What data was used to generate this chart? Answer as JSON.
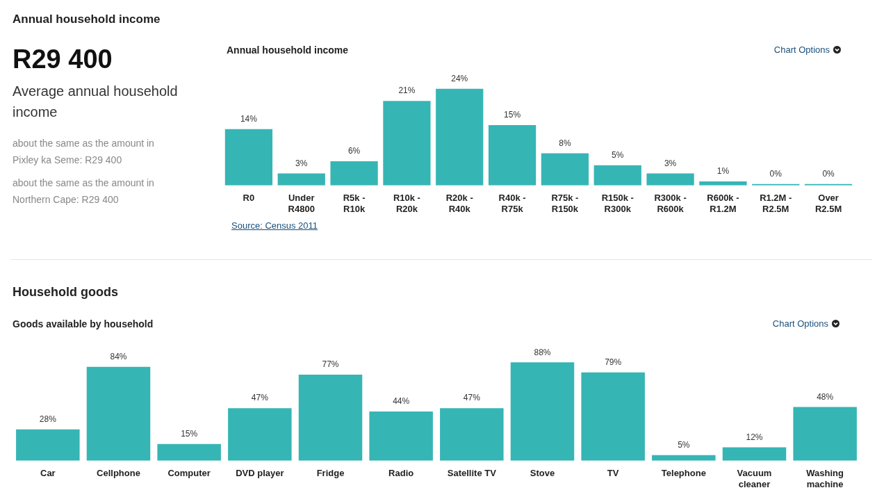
{
  "chart_data": [
    {
      "type": "other",
      "title": "Annual household income",
      "annotations": [
        "R29 400",
        "Average annual household income",
        "about the same as the amount in Pixley ka Seme: R29 400",
        "about the same as the amount in Northern Cape: R29 400"
      ]
    },
    {
      "type": "bar",
      "title": "Annual household income",
      "categories": [
        "R0",
        "Under R4800",
        "R5k - R10k",
        "R10k - R20k",
        "R20k - R40k",
        "R40k - R75k",
        "R75k - R150k",
        "R150k - R300k",
        "R300k - R600k",
        "R600k - R1.2M",
        "R1.2M - R2.5M",
        "Over R2.5M"
      ],
      "values": [
        14,
        3,
        6,
        21,
        24,
        15,
        8,
        5,
        3,
        1,
        0,
        0
      ],
      "value_labels": [
        "14%",
        "3%",
        "6%",
        "21%",
        "24%",
        "15%",
        "8%",
        "5%",
        "3%",
        "1%",
        "0%",
        "0%"
      ],
      "color": "#36b5b5",
      "annotations": [
        "Chart Options",
        "Source: Census 2011"
      ]
    },
    {
      "type": "bar",
      "title": "Household goods",
      "subtitle": "Goods available by household",
      "categories": [
        "Car",
        "Cellphone",
        "Computer",
        "DVD player",
        "Fridge",
        "Radio",
        "Satellite TV",
        "Stove",
        "TV",
        "Telephone",
        "Vacuum cleaner",
        "Washing machine"
      ],
      "values": [
        28,
        84,
        15,
        47,
        77,
        44,
        47,
        88,
        79,
        5,
        12,
        48
      ],
      "value_labels": [
        "28%",
        "84%",
        "15%",
        "47%",
        "77%",
        "44%",
        "47%",
        "88%",
        "79%",
        "5%",
        "12%",
        "48%"
      ],
      "color": "#36b5b5",
      "annotations": [
        "Chart Options"
      ]
    }
  ]
}
